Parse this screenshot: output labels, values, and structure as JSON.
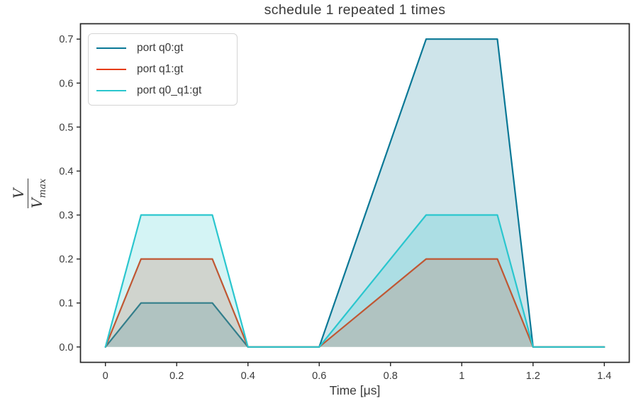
{
  "figure": {
    "background": "#ffffff",
    "text_color": "#3a3a3a",
    "spine_color": "#262626"
  },
  "chart_data": {
    "type": "line",
    "subtype": "pulse-schedule",
    "title": "schedule 1 repeated 1 times",
    "xlabel": "Time [μs]",
    "ylabel": {
      "numerator": "V",
      "denominator_base": "V",
      "denominator_sub": "max"
    },
    "xlim": [
      -0.07,
      1.47
    ],
    "ylim": [
      -0.035,
      0.735
    ],
    "xticks": {
      "values": [
        0,
        0.2,
        0.4,
        0.6,
        0.8,
        1,
        1.2,
        1.4
      ],
      "labels": [
        "0",
        "0.2",
        "0.4",
        "0.6",
        "0.8",
        "1",
        "1.2",
        "1.4"
      ]
    },
    "yticks": {
      "values": [
        0.0,
        0.1,
        0.2,
        0.3,
        0.4,
        0.5,
        0.6,
        0.7
      ],
      "labels": [
        "0.0",
        "0.1",
        "0.2",
        "0.3",
        "0.4",
        "0.5",
        "0.6",
        "0.7"
      ]
    },
    "grid": false,
    "line_width": 2.2,
    "fill_opacity": 0.2,
    "legend_position": "upper left",
    "series": [
      {
        "name": "port q0:gt",
        "color": "#0a7896",
        "points": [
          [
            0,
            0
          ],
          [
            0.1,
            0.1
          ],
          [
            0.3,
            0.1
          ],
          [
            0.4,
            0
          ],
          [
            0.6,
            0
          ],
          [
            0.9,
            0.7
          ],
          [
            1.1,
            0.7
          ],
          [
            1.2,
            0
          ],
          [
            1.4,
            0
          ]
        ]
      },
      {
        "name": "port q1:gt",
        "color": "#e63b0d",
        "points": [
          [
            0,
            0
          ],
          [
            0.1,
            0.2
          ],
          [
            0.3,
            0.2
          ],
          [
            0.4,
            0
          ],
          [
            0.6,
            0
          ],
          [
            0.9,
            0.2
          ],
          [
            1.1,
            0.2
          ],
          [
            1.2,
            0
          ],
          [
            1.4,
            0
          ]
        ]
      },
      {
        "name": "port q0_q1:gt",
        "color": "#2ac6ce",
        "points": [
          [
            0,
            0
          ],
          [
            0.1,
            0.3
          ],
          [
            0.3,
            0.3
          ],
          [
            0.4,
            0
          ],
          [
            0.6,
            0
          ],
          [
            0.9,
            0.3
          ],
          [
            1.1,
            0.3
          ],
          [
            1.2,
            0
          ],
          [
            1.4,
            0
          ]
        ]
      }
    ]
  }
}
